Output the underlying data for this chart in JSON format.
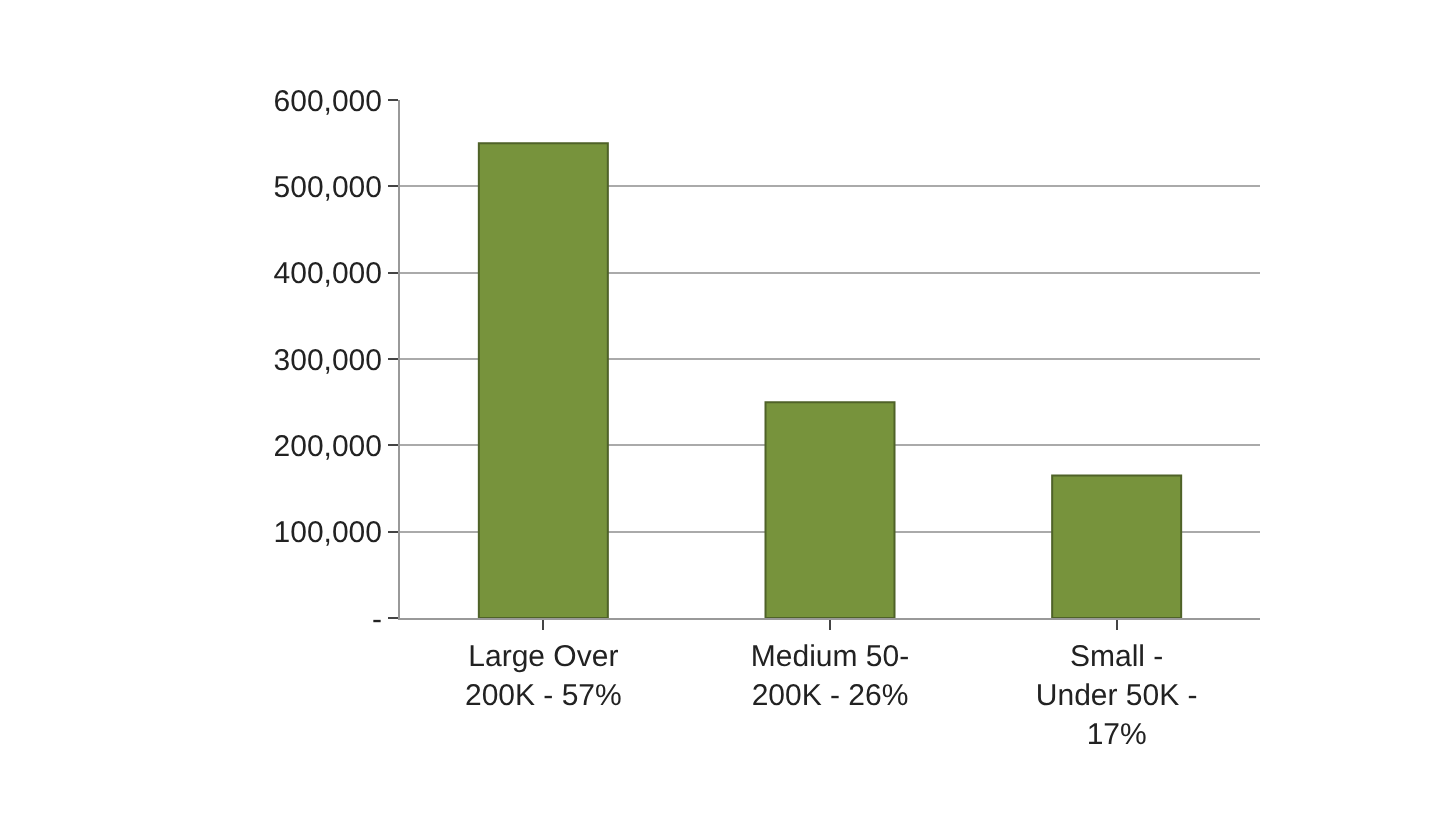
{
  "chart_data": {
    "type": "bar",
    "categories": [
      "Large Over\n200K - 57%",
      "Medium 50-\n200K - 26%",
      "Small -\nUnder 50K -\n17%"
    ],
    "values": [
      550000,
      250000,
      165000
    ],
    "color": "#77933c",
    "ylim": [
      0,
      600000
    ],
    "yticks": [
      {
        "value": 0,
        "label": "-"
      },
      {
        "value": 100000,
        "label": "100,000"
      },
      {
        "value": 200000,
        "label": "200,000"
      },
      {
        "value": 300000,
        "label": "300,000"
      },
      {
        "value": 400000,
        "label": "400,000"
      },
      {
        "value": 500000,
        "label": "500,000"
      },
      {
        "value": 600000,
        "label": "600,000"
      }
    ],
    "grid": "y"
  }
}
